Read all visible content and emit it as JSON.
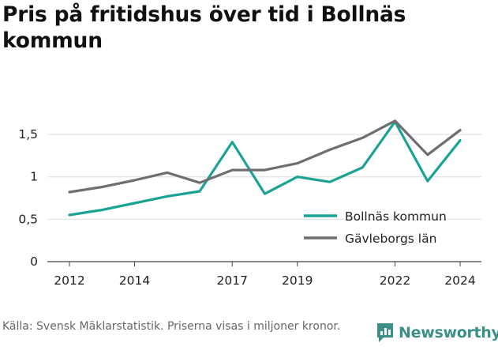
{
  "title": "Pris på fritidshus över tid i Bollnäs kommun",
  "source": "Källa: Svensk Mäklarstatistik. Priserna visas i miljoner kronor.",
  "brand": "Newsworthy",
  "chart_data": {
    "type": "line",
    "title": "Pris på fritidshus över tid i Bollnäs kommun",
    "xlabel": "",
    "ylabel": "",
    "xlim": [
      2012,
      2024
    ],
    "ylim": [
      0,
      1.65
    ],
    "x_ticks": [
      2012,
      2014,
      2017,
      2019,
      2022,
      2024
    ],
    "x_tick_labels": [
      "2012",
      "2014",
      "2017",
      "2019",
      "2022",
      "2024"
    ],
    "y_ticks": [
      0,
      0.5,
      1,
      1.5
    ],
    "y_tick_labels": [
      "0",
      "0,5",
      "1",
      "1,5"
    ],
    "grid": "horizontal",
    "legend": "right",
    "x": [
      2012,
      2013,
      2014,
      2015,
      2016,
      2017,
      2018,
      2019,
      2020,
      2021,
      2022,
      2023,
      2024
    ],
    "series": [
      {
        "name": "Bollnäs kommun",
        "color": "#1aa394",
        "values": [
          0.55,
          0.61,
          0.69,
          0.77,
          0.83,
          1.41,
          0.8,
          1.0,
          0.94,
          1.11,
          1.65,
          0.95,
          1.43
        ]
      },
      {
        "name": "Gävleborgs län",
        "color": "#6e6e72",
        "values": [
          0.82,
          0.88,
          0.96,
          1.05,
          0.93,
          1.08,
          1.08,
          1.16,
          1.32,
          1.46,
          1.66,
          1.26,
          1.55
        ]
      }
    ]
  }
}
